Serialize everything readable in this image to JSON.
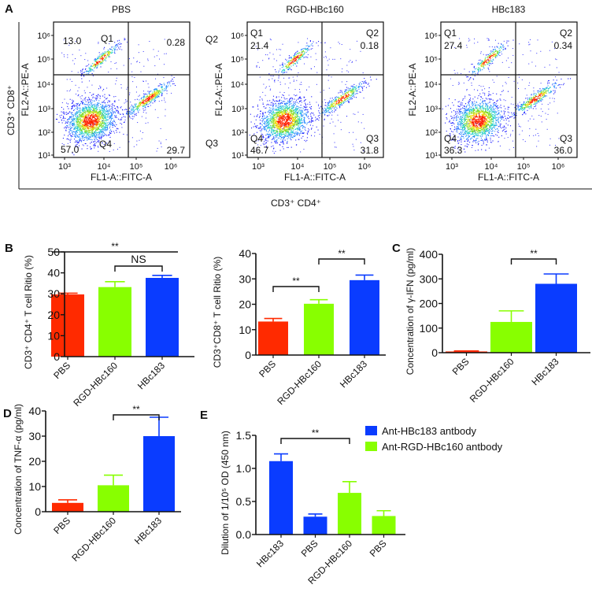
{
  "panel_labels": [
    "A",
    "B",
    "C",
    "D",
    "E"
  ],
  "flow": {
    "y_axis_group_label": "CD3⁺ CD8⁺",
    "x_axis_group_label": "CD3⁺ CD4⁺",
    "x_axis_label": "FL1-A::FITC-A",
    "y_axis_label": "FL2-A::PE-A",
    "x_ticks": [
      "10³",
      "10⁴",
      "10⁵",
      "10⁶"
    ],
    "y_ticks": [
      "10¹",
      "10²",
      "10³",
      "10⁴",
      "10⁵",
      "10⁶"
    ],
    "plots": [
      {
        "title": "PBS",
        "ul": "13.0",
        "ul_label": "Q1",
        "ur": "0.28",
        "ur_label": "",
        "ll": "57.0",
        "ll_label": "Q4",
        "lr": "29.7",
        "lr_label": "",
        "outside_top": "",
        "outside_bottom": ""
      },
      {
        "title": "RGD-HBc160",
        "ul": "21.4",
        "ul_label": "Q1",
        "ur": "0.18",
        "ur_label": "Q2",
        "ll": "46.7",
        "ll_label": "Q4",
        "lr": "31.8",
        "lr_label": "Q3",
        "outside_top": "Q2",
        "outside_bottom": "Q3"
      },
      {
        "title": "HBc183",
        "ul": "27.4",
        "ul_label": "Q1",
        "ur": "0.34",
        "ur_label": "Q2",
        "ll": "36.3",
        "ll_label": "Q4",
        "lr": "36.0",
        "lr_label": "Q3",
        "outside_top": "",
        "outside_bottom": ""
      }
    ]
  },
  "colors": {
    "PBS": "#ff2a00",
    "RGD": "#88ff00",
    "HBc": "#0a3cff"
  },
  "chart_data": [
    {
      "id": "B1",
      "type": "bar",
      "ylabel": "CD3⁺ CD4⁺ T cell Ritio (%)",
      "categories": [
        "PBS",
        "RGD-HBc160",
        "HBc183"
      ],
      "values": [
        29.7,
        33.2,
        37.6
      ],
      "errors": [
        0.6,
        2.6,
        1.2
      ],
      "colors": [
        "PBS",
        "RGD",
        "HBc"
      ],
      "ylim": [
        0,
        50
      ],
      "yticks": [
        "0",
        "10",
        "20",
        "30",
        "40",
        "50"
      ],
      "significance": [
        {
          "from": 0,
          "to": 2,
          "label": "**",
          "style": "line"
        },
        {
          "from": 1,
          "to": 2,
          "label": "NS",
          "style": "bracket"
        }
      ]
    },
    {
      "id": "B2",
      "type": "bar",
      "ylabel": "CD3⁺CD8⁺ T cell Ritio (%)",
      "categories": [
        "PBS",
        "RGD-HBc160",
        "HBc183"
      ],
      "values": [
        13.2,
        20.2,
        29.5
      ],
      "errors": [
        1.2,
        1.6,
        2.0
      ],
      "colors": [
        "PBS",
        "RGD",
        "HBc"
      ],
      "ylim": [
        0,
        40
      ],
      "yticks": [
        "0",
        "10",
        "20",
        "30",
        "40"
      ],
      "significance": [
        {
          "from": 0,
          "to": 1,
          "label": "**",
          "style": "bracket"
        },
        {
          "from": 1,
          "to": 2,
          "label": "**",
          "style": "bracket"
        }
      ]
    },
    {
      "id": "C",
      "type": "bar",
      "ylabel": "Concentration of γ-IFN (pg/ml)",
      "categories": [
        "PBS",
        "RGD-HBc160",
        "HBc183"
      ],
      "values": [
        5,
        125,
        280
      ],
      "errors": [
        2,
        45,
        40
      ],
      "colors": [
        "PBS",
        "RGD",
        "HBc"
      ],
      "ylim": [
        0,
        400
      ],
      "yticks": [
        "0",
        "100",
        "200",
        "300",
        "400"
      ],
      "significance": [
        {
          "from": 1,
          "to": 2,
          "label": "**",
          "style": "bracket"
        }
      ]
    },
    {
      "id": "D",
      "type": "bar",
      "ylabel": "Concentration of TNF-α (pg/ml)",
      "categories": [
        "PBS",
        "RGD-HBc160",
        "HBc183"
      ],
      "values": [
        3.5,
        10.5,
        30
      ],
      "errors": [
        1.2,
        4,
        7.5
      ],
      "colors": [
        "PBS",
        "RGD",
        "HBc"
      ],
      "ylim": [
        0,
        40
      ],
      "yticks": [
        "0",
        "10",
        "20",
        "30",
        "40"
      ],
      "significance": [
        {
          "from": 1,
          "to": 2,
          "label": "**",
          "style": "bracket"
        }
      ]
    },
    {
      "id": "E",
      "type": "bar",
      "ylabel": "Dilution of 1/10⁵ OD (450 nm)",
      "categories": [
        "HBc183",
        "PBS",
        "RGD-HBc160",
        "PBS"
      ],
      "values": [
        1.11,
        0.27,
        0.63,
        0.28
      ],
      "errors": [
        0.11,
        0.04,
        0.17,
        0.08
      ],
      "colors": [
        "HBc",
        "HBc",
        "RGD",
        "RGD"
      ],
      "ylim": [
        0,
        1.5
      ],
      "yticks": [
        "0.0",
        "0.5",
        "1.0",
        "1.5"
      ],
      "significance": [
        {
          "from": 0,
          "to": 2,
          "label": "**",
          "style": "bracket"
        }
      ],
      "legend": [
        {
          "label": "Ant-HBc183 antbody",
          "color": "HBc"
        },
        {
          "label": "Ant-RGD-HBc160 antbody",
          "color": "RGD"
        }
      ],
      "legend_position": "top-right"
    }
  ]
}
